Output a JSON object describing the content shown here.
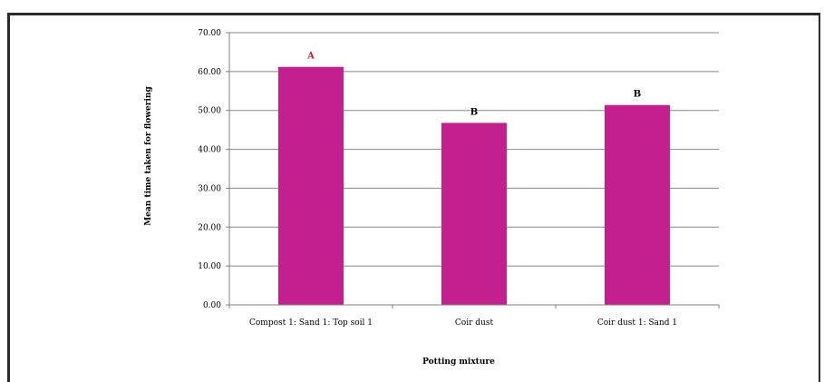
{
  "chart_data": {
    "type": "bar",
    "categories": [
      "Compost 1: Sand 1: Top soil 1",
      "Coir dust",
      "Coir dust 1: Sand 1"
    ],
    "values": [
      61.2,
      46.8,
      51.4
    ],
    "significance_letters": [
      "A",
      "B",
      "B"
    ],
    "significance_colors": [
      "#cc1f2f",
      "#000000",
      "#000000"
    ],
    "bar_color": "#c31f8f",
    "title": "",
    "xlabel": "Potting mixture",
    "ylabel": "Mean time taken for flowering",
    "ylim": [
      0,
      70
    ],
    "yticks": [
      "0.00",
      "10.00",
      "20.00",
      "30.00",
      "40.00",
      "50.00",
      "60.00",
      "70.00"
    ],
    "grid": true,
    "legend": "none"
  }
}
